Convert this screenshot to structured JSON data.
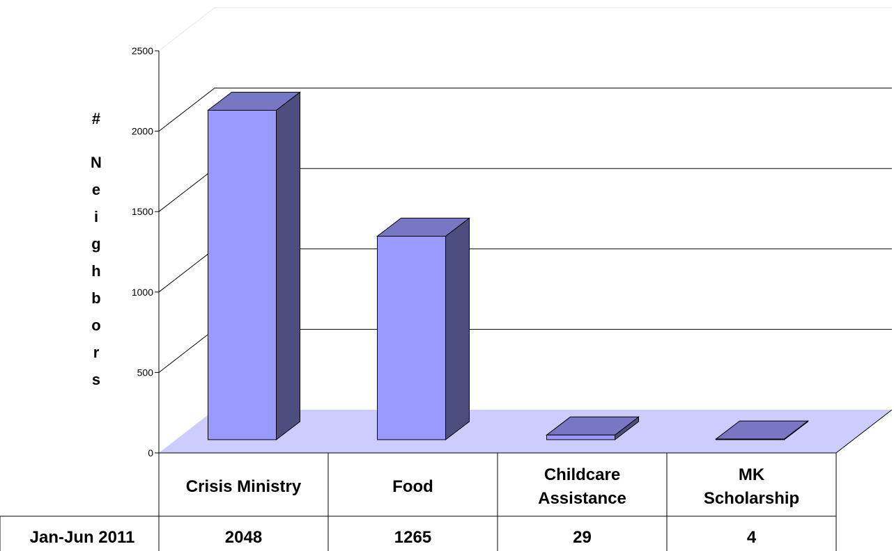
{
  "chart_data": {
    "type": "bar",
    "categories": [
      "Crisis Ministry",
      "Food",
      "Childcare Assistance",
      "MK Scholarship"
    ],
    "category_lines": [
      [
        "Crisis Ministry"
      ],
      [
        "Food"
      ],
      [
        "Childcare",
        "Assistance"
      ],
      [
        "MK",
        "Scholarship"
      ]
    ],
    "series": [
      {
        "name": "Jan-Jun 2011",
        "values": [
          2048,
          1265,
          29,
          4
        ]
      }
    ],
    "table_values": [
      "2048",
      "1265",
      "29",
      "4"
    ],
    "ylabel": "# Neighbors",
    "ylabel_chars": [
      "#",
      "",
      "N",
      "e",
      "i",
      "g",
      "h",
      "b",
      "o",
      "r",
      "s"
    ],
    "ylim": [
      0,
      2500
    ],
    "yticks": [
      0,
      500,
      1000,
      1500,
      2000,
      2500
    ],
    "ytick_labels": [
      "0",
      "500",
      "1000",
      "1500",
      "2000",
      "2500"
    ],
    "grid": true,
    "legend": "data-table-row-header"
  },
  "colors": {
    "bar_front": "#9999ff",
    "bar_top": "#7777c4",
    "bar_side": "#4d4d80",
    "floor": "#ccccff"
  }
}
